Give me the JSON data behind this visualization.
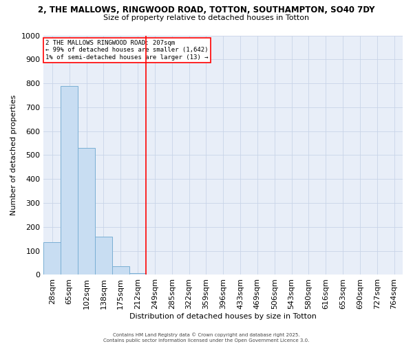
{
  "title_line1": "2, THE MALLOWS, RINGWOOD ROAD, TOTTON, SOUTHAMPTON, SO40 7DY",
  "title_line2": "Size of property relative to detached houses in Totton",
  "xlabel": "Distribution of detached houses by size in Totton",
  "ylabel": "Number of detached properties",
  "categories": [
    "28sqm",
    "65sqm",
    "102sqm",
    "138sqm",
    "175sqm",
    "212sqm",
    "249sqm",
    "285sqm",
    "322sqm",
    "359sqm",
    "396sqm",
    "433sqm",
    "469sqm",
    "506sqm",
    "543sqm",
    "580sqm",
    "616sqm",
    "653sqm",
    "690sqm",
    "727sqm",
    "764sqm"
  ],
  "values": [
    135,
    790,
    530,
    160,
    35,
    8,
    0,
    0,
    0,
    0,
    0,
    0,
    0,
    0,
    0,
    0,
    0,
    0,
    0,
    0,
    0
  ],
  "bar_color": "#c8ddf2",
  "bar_edge_color": "#7aafd4",
  "ylim": [
    0,
    1000
  ],
  "red_line_index": 5.5,
  "annotation_line1": "2 THE MALLOWS RINGWOOD ROAD: 207sqm",
  "annotation_line2": "← 99% of detached houses are smaller (1,642)",
  "annotation_line3": "1% of semi-detached houses are larger (13) →",
  "grid_color": "#c8d4e8",
  "background_color": "#e8eef8",
  "footer_line1": "Contains HM Land Registry data © Crown copyright and database right 2025.",
  "footer_line2": "Contains public sector information licensed under the Open Government Licence 3.0."
}
